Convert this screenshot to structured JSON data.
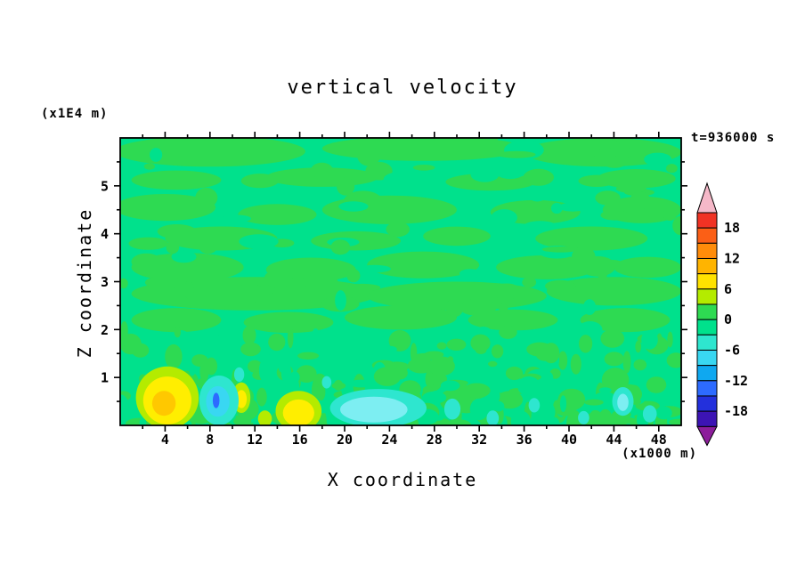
{
  "page": {
    "background": "#ffffff"
  },
  "chart_data": {
    "type": "heatmap",
    "subtype": "filled-contour",
    "title": "vertical velocity",
    "time_label": "t=936000 s",
    "xlabel": "X coordinate",
    "x_unit": "(x1000 m)",
    "ylabel": "Z coordinate",
    "y_unit": "(x1E4 m)",
    "x_range": [
      0,
      50
    ],
    "z_range": [
      0,
      6
    ],
    "x_ticks": [
      4,
      8,
      12,
      16,
      20,
      24,
      28,
      32,
      36,
      40,
      44,
      48
    ],
    "x_minor_step": 2,
    "z_ticks": [
      1,
      2,
      3,
      4,
      5
    ],
    "z_minor_step": 0.5,
    "grid": false,
    "legend_position": "right",
    "field": {
      "description": "Field is near zero almost everywhere: background is the -3..0 band (spring green) with irregular horizontal patches of the 0..3 band (green); strongest updrafts (yellow, ~+6..+12) near bottom-left around x=2-6 and x=15-17; downdrafts (cyan, ~-6..-9) near the bottom around x=7-10, x=19-27, x=29-33, x=44-47 with a small -12..-15 (blue) spot at x=8.6, z=0.5.",
      "background_color": "#00e18c",
      "patch_color": "#2eda52",
      "streaks": [
        [
          8,
          5.72,
          8.5,
          0.32
        ],
        [
          27,
          5.78,
          9,
          0.26
        ],
        [
          43,
          5.7,
          7,
          0.3
        ],
        [
          5,
          5.12,
          4,
          0.2
        ],
        [
          18,
          5.18,
          5,
          0.2
        ],
        [
          33,
          5.08,
          4,
          0.18
        ],
        [
          46,
          5.15,
          3.5,
          0.2
        ],
        [
          4,
          4.55,
          4.5,
          0.28
        ],
        [
          14,
          4.4,
          3.5,
          0.22
        ],
        [
          24,
          4.5,
          6,
          0.3
        ],
        [
          37,
          4.45,
          4,
          0.25
        ],
        [
          46.5,
          4.5,
          3.5,
          0.28
        ],
        [
          9,
          3.9,
          5,
          0.25
        ],
        [
          21,
          3.85,
          4,
          0.2
        ],
        [
          30,
          3.95,
          3,
          0.2
        ],
        [
          42,
          3.9,
          5,
          0.25
        ],
        [
          6,
          3.3,
          5,
          0.3
        ],
        [
          17,
          3.25,
          4,
          0.25
        ],
        [
          27,
          3.35,
          5,
          0.28
        ],
        [
          38,
          3.3,
          4.5,
          0.25
        ],
        [
          47,
          3.3,
          3,
          0.22
        ],
        [
          12,
          2.75,
          11,
          0.35
        ],
        [
          30,
          2.7,
          8,
          0.3
        ],
        [
          44,
          2.8,
          6,
          0.3
        ],
        [
          5,
          2.2,
          4,
          0.25
        ],
        [
          15,
          2.15,
          4,
          0.22
        ],
        [
          25,
          2.25,
          5,
          0.25
        ],
        [
          35,
          2.2,
          4,
          0.22
        ],
        [
          45,
          2.2,
          4,
          0.25
        ]
      ],
      "noise": {
        "seed": 77421,
        "low_count": 330,
        "low_zmax": 2.0,
        "mid_count": 85,
        "patch_fraction_low": 0.6,
        "patch_fraction_mid": 0.72
      },
      "features": [
        [
          4.2,
          0.58,
          2.8,
          0.65,
          "#b4eb00"
        ],
        [
          4.2,
          0.52,
          2.15,
          0.5,
          "#ffee00"
        ],
        [
          3.9,
          0.46,
          1.05,
          0.26,
          "#ffc800"
        ],
        [
          15.9,
          0.3,
          2.05,
          0.42,
          "#b4eb00"
        ],
        [
          15.9,
          0.26,
          1.4,
          0.28,
          "#ffee00"
        ],
        [
          10.8,
          0.58,
          0.8,
          0.32,
          "#b4eb00"
        ],
        [
          10.8,
          0.55,
          0.48,
          0.19,
          "#ffee00"
        ],
        [
          12.9,
          0.14,
          0.62,
          0.17,
          "#b4eb00"
        ],
        [
          18.4,
          0.9,
          0.42,
          0.13,
          "#2ee6cf"
        ],
        [
          8.8,
          0.52,
          1.75,
          0.52,
          "#2ee6cf"
        ],
        [
          8.7,
          0.5,
          1.05,
          0.32,
          "#39d7f2"
        ],
        [
          8.55,
          0.52,
          0.3,
          0.16,
          "#2d6bff"
        ],
        [
          23.0,
          0.36,
          4.3,
          0.4,
          "#2ee6cf"
        ],
        [
          22.6,
          0.33,
          3.0,
          0.27,
          "#7deef2"
        ],
        [
          29.6,
          0.34,
          0.72,
          0.22,
          "#2ee6cf"
        ],
        [
          33.2,
          0.15,
          0.55,
          0.16,
          "#2ee6cf"
        ],
        [
          36.9,
          0.42,
          0.5,
          0.15,
          "#2ee6cf"
        ],
        [
          41.3,
          0.16,
          0.5,
          0.14,
          "#2ee6cf"
        ],
        [
          44.8,
          0.5,
          0.95,
          0.3,
          "#2ee6cf"
        ],
        [
          44.8,
          0.48,
          0.5,
          0.18,
          "#7deef2"
        ],
        [
          47.2,
          0.24,
          0.62,
          0.18,
          "#2ee6cf"
        ],
        [
          10.6,
          1.06,
          0.45,
          0.15,
          "#2ee6cf"
        ]
      ]
    },
    "colorbar": {
      "boundary_min": -21,
      "boundary_max": 21,
      "step": 3,
      "labels": [
        "18",
        "12",
        "6",
        "0",
        "-6",
        "-12",
        "-18"
      ],
      "label_values": [
        18,
        12,
        6,
        0,
        -6,
        -12,
        -18
      ],
      "segment_colors_top_to_bottom": [
        "#f03224",
        "#fb5f16",
        "#ff8c0a",
        "#ffb400",
        "#ffe200",
        "#b4eb00",
        "#2eda52",
        "#00e18c",
        "#2ee6cf",
        "#39d7f2",
        "#0fa8f0",
        "#2d6bff",
        "#2330dc",
        "#3c14b4"
      ],
      "arrow_top_color": "#f5b8c8",
      "arrow_bottom_color": "#8c1e9b",
      "outline_color": "#000000"
    }
  }
}
